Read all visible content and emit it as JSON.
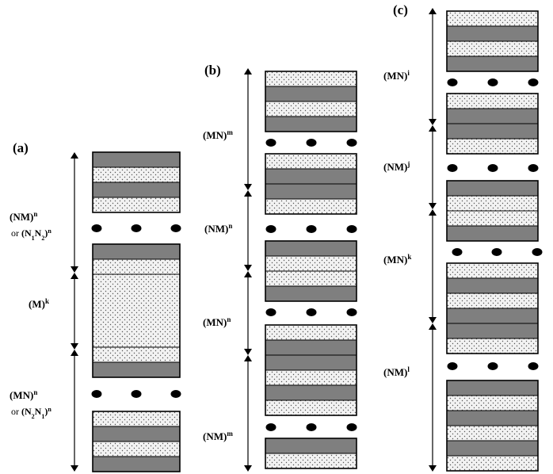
{
  "colors": {
    "dark_layer": "#7f7f7f",
    "dotted_layer": "#f2f2f2",
    "ink": "#000000"
  },
  "panels": [
    {
      "letter": "(a)",
      "segments": [
        {
          "label_base": "(NM)",
          "label_sup": "n",
          "alt_or": "or ",
          "alt_base": "(N",
          "alt_sub1": "1",
          "alt_mid": "N",
          "alt_sub2": "2",
          "alt_close": ")",
          "alt_sup": "n"
        },
        {
          "label_base": "(M)",
          "label_sup": "k"
        },
        {
          "label_base": "(MN)",
          "label_sup": "n",
          "alt_or": "or ",
          "alt_base": "(N",
          "alt_sub1": "2",
          "alt_mid": "N",
          "alt_sub2": "1",
          "alt_close": ")",
          "alt_sup": "n"
        }
      ]
    },
    {
      "letter": "(b)",
      "segments": [
        {
          "label_base": "(MN)",
          "label_sup": "m"
        },
        {
          "label_base": "(NM)",
          "label_sup": "n"
        },
        {
          "label_base": "(MN)",
          "label_sup": "n"
        },
        {
          "label_base": "(NM)",
          "label_sup": "m"
        }
      ]
    },
    {
      "letter": "(c)",
      "segments": [
        {
          "label_base": "(MN)",
          "label_sup": "i"
        },
        {
          "label_base": "(NM)",
          "label_sup": "j"
        },
        {
          "label_base": "(MN)",
          "label_sup": "k"
        },
        {
          "label_base": "(NM)",
          "label_sup": "l"
        }
      ]
    }
  ]
}
